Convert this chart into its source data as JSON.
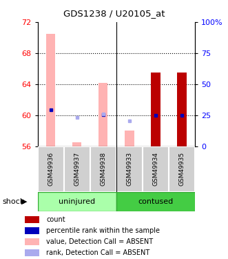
{
  "title": "GDS1238 / U20105_at",
  "samples": [
    "GSM49936",
    "GSM49937",
    "GSM49938",
    "GSM49933",
    "GSM49934",
    "GSM49935"
  ],
  "ylim_left": [
    56,
    72
  ],
  "ylim_right": [
    0,
    100
  ],
  "yticks_left": [
    56,
    60,
    64,
    68,
    72
  ],
  "yticks_right": [
    0,
    25,
    50,
    75,
    100
  ],
  "ytick_labels_right": [
    "0",
    "25",
    "50",
    "75",
    "100%"
  ],
  "bar_bottom": 56,
  "bars_pink_heights": [
    70.5,
    56.5,
    64.2,
    58.0,
    null,
    null
  ],
  "bars_red_heights": [
    null,
    null,
    null,
    null,
    65.5,
    65.5
  ],
  "dots_blue_values": [
    60.7,
    null,
    60.1,
    null,
    60.0,
    60.0
  ],
  "dots_light_blue_values": [
    null,
    59.7,
    60.2,
    59.3,
    null,
    null
  ],
  "bar_width": 0.35,
  "color_pink": "#FFB3B3",
  "color_red": "#BB0000",
  "color_blue": "#0000BB",
  "color_light_blue": "#AAAAEE",
  "color_uninjured": "#AAFFAA",
  "color_contused": "#44CC44",
  "color_sample_bg": "#D0D0D0",
  "group_separator": 2.5,
  "legend": [
    {
      "color": "#BB0000",
      "label": "count"
    },
    {
      "color": "#0000BB",
      "label": "percentile rank within the sample"
    },
    {
      "color": "#FFB3B3",
      "label": "value, Detection Call = ABSENT"
    },
    {
      "color": "#AAAAEE",
      "label": "rank, Detection Call = ABSENT"
    }
  ]
}
